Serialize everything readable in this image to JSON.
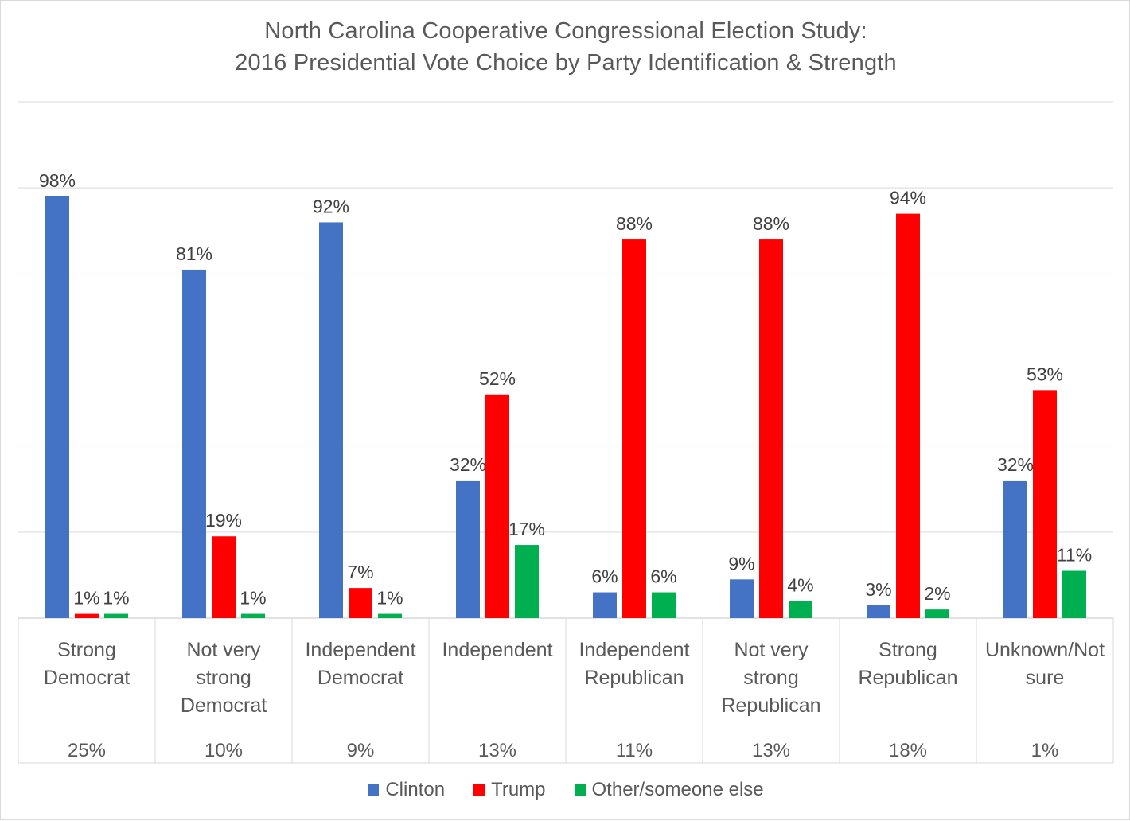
{
  "chart_data": {
    "type": "bar",
    "title_lines": [
      "North Carolina Cooperative Congressional Election Study:",
      "2016 Presidential Vote Choice by Party Identification & Strength"
    ],
    "categories": [
      [
        "Strong",
        "Democrat"
      ],
      [
        "Not very",
        "strong",
        "Democrat"
      ],
      [
        "Independent",
        "Democrat"
      ],
      [
        "Independent"
      ],
      [
        "Independent",
        "Republican"
      ],
      [
        "Not very",
        "strong",
        "Republican"
      ],
      [
        "Strong",
        "Republican"
      ],
      [
        "Unknown/Not",
        "sure"
      ]
    ],
    "category_shares": [
      "25%",
      "10%",
      "9%",
      "13%",
      "11%",
      "13%",
      "18%",
      "1%"
    ],
    "series": [
      {
        "name": "Clinton",
        "color": "#4472c4",
        "values": [
          98,
          81,
          92,
          32,
          6,
          9,
          3,
          32
        ],
        "labels": [
          "98%",
          "81%",
          "92%",
          "32%",
          "6%",
          "9%",
          "3%",
          "32%"
        ]
      },
      {
        "name": "Trump",
        "color": "#ff0000",
        "values": [
          1,
          19,
          7,
          52,
          88,
          88,
          94,
          53
        ],
        "labels": [
          "1%",
          "19%",
          "7%",
          "52%",
          "88%",
          "88%",
          "94%",
          "53%"
        ]
      },
      {
        "name": "Other/someone else",
        "color": "#00b050",
        "values": [
          1,
          1,
          1,
          17,
          6,
          4,
          2,
          11
        ],
        "labels": [
          "1%",
          "1%",
          "1%",
          "17%",
          "6%",
          "4%",
          "2%",
          "11%"
        ]
      }
    ],
    "ylim": [
      0,
      120
    ],
    "y_tick_step": 20,
    "y_tick_labels_shown": false,
    "grid": true,
    "legend_position": "bottom"
  }
}
